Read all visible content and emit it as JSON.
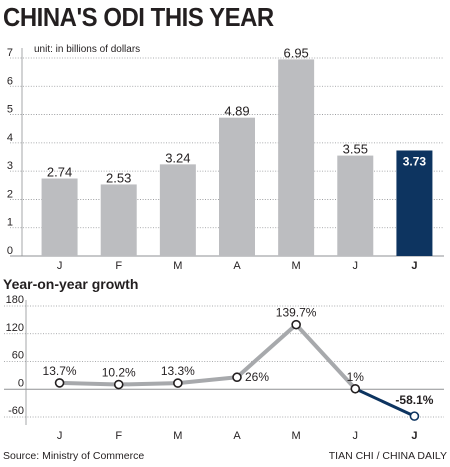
{
  "title": "CHINA'S ODI THIS YEAR",
  "subtitle": "Year-on-year growth",
  "source": "Source: Ministry of Commerce",
  "credit": "TIAN CHI / CHINA DAILY",
  "colors": {
    "bar": "#bcbdc0",
    "highlight": "#0d3460",
    "line": "#a7a9ac",
    "grid": "#8f9194",
    "text": "#231f20"
  },
  "chart_data": [
    {
      "type": "bar",
      "title": "CHINA'S ODI THIS YEAR",
      "annotation": "unit: in billions of dollars",
      "categories": [
        "J",
        "F",
        "M",
        "A",
        "M",
        "J",
        "J"
      ],
      "values": [
        2.74,
        2.53,
        3.24,
        4.89,
        6.95,
        3.55,
        3.73
      ],
      "value_labels": [
        "2.74",
        "2.53",
        "3.24",
        "4.89",
        "6.95",
        "3.55",
        "3.73"
      ],
      "highlight_index": 6,
      "ylim": [
        0,
        7
      ],
      "yticks": [
        0,
        1,
        2,
        3,
        4,
        5,
        6,
        7
      ],
      "grid": true
    },
    {
      "type": "line",
      "title": "Year-on-year growth",
      "categories": [
        "J",
        "F",
        "M",
        "A",
        "M",
        "J",
        "J"
      ],
      "values": [
        13.7,
        10.2,
        13.3,
        26,
        139.7,
        1,
        -58.1
      ],
      "value_labels": [
        "13.7%",
        "10.2%",
        "13.3%",
        "26%",
        "139.7%",
        "1%",
        "-58.1%"
      ],
      "highlight_index": 6,
      "ylim": [
        -60,
        180
      ],
      "yticks": [
        -60,
        0,
        60,
        120,
        180
      ],
      "grid": true
    }
  ]
}
